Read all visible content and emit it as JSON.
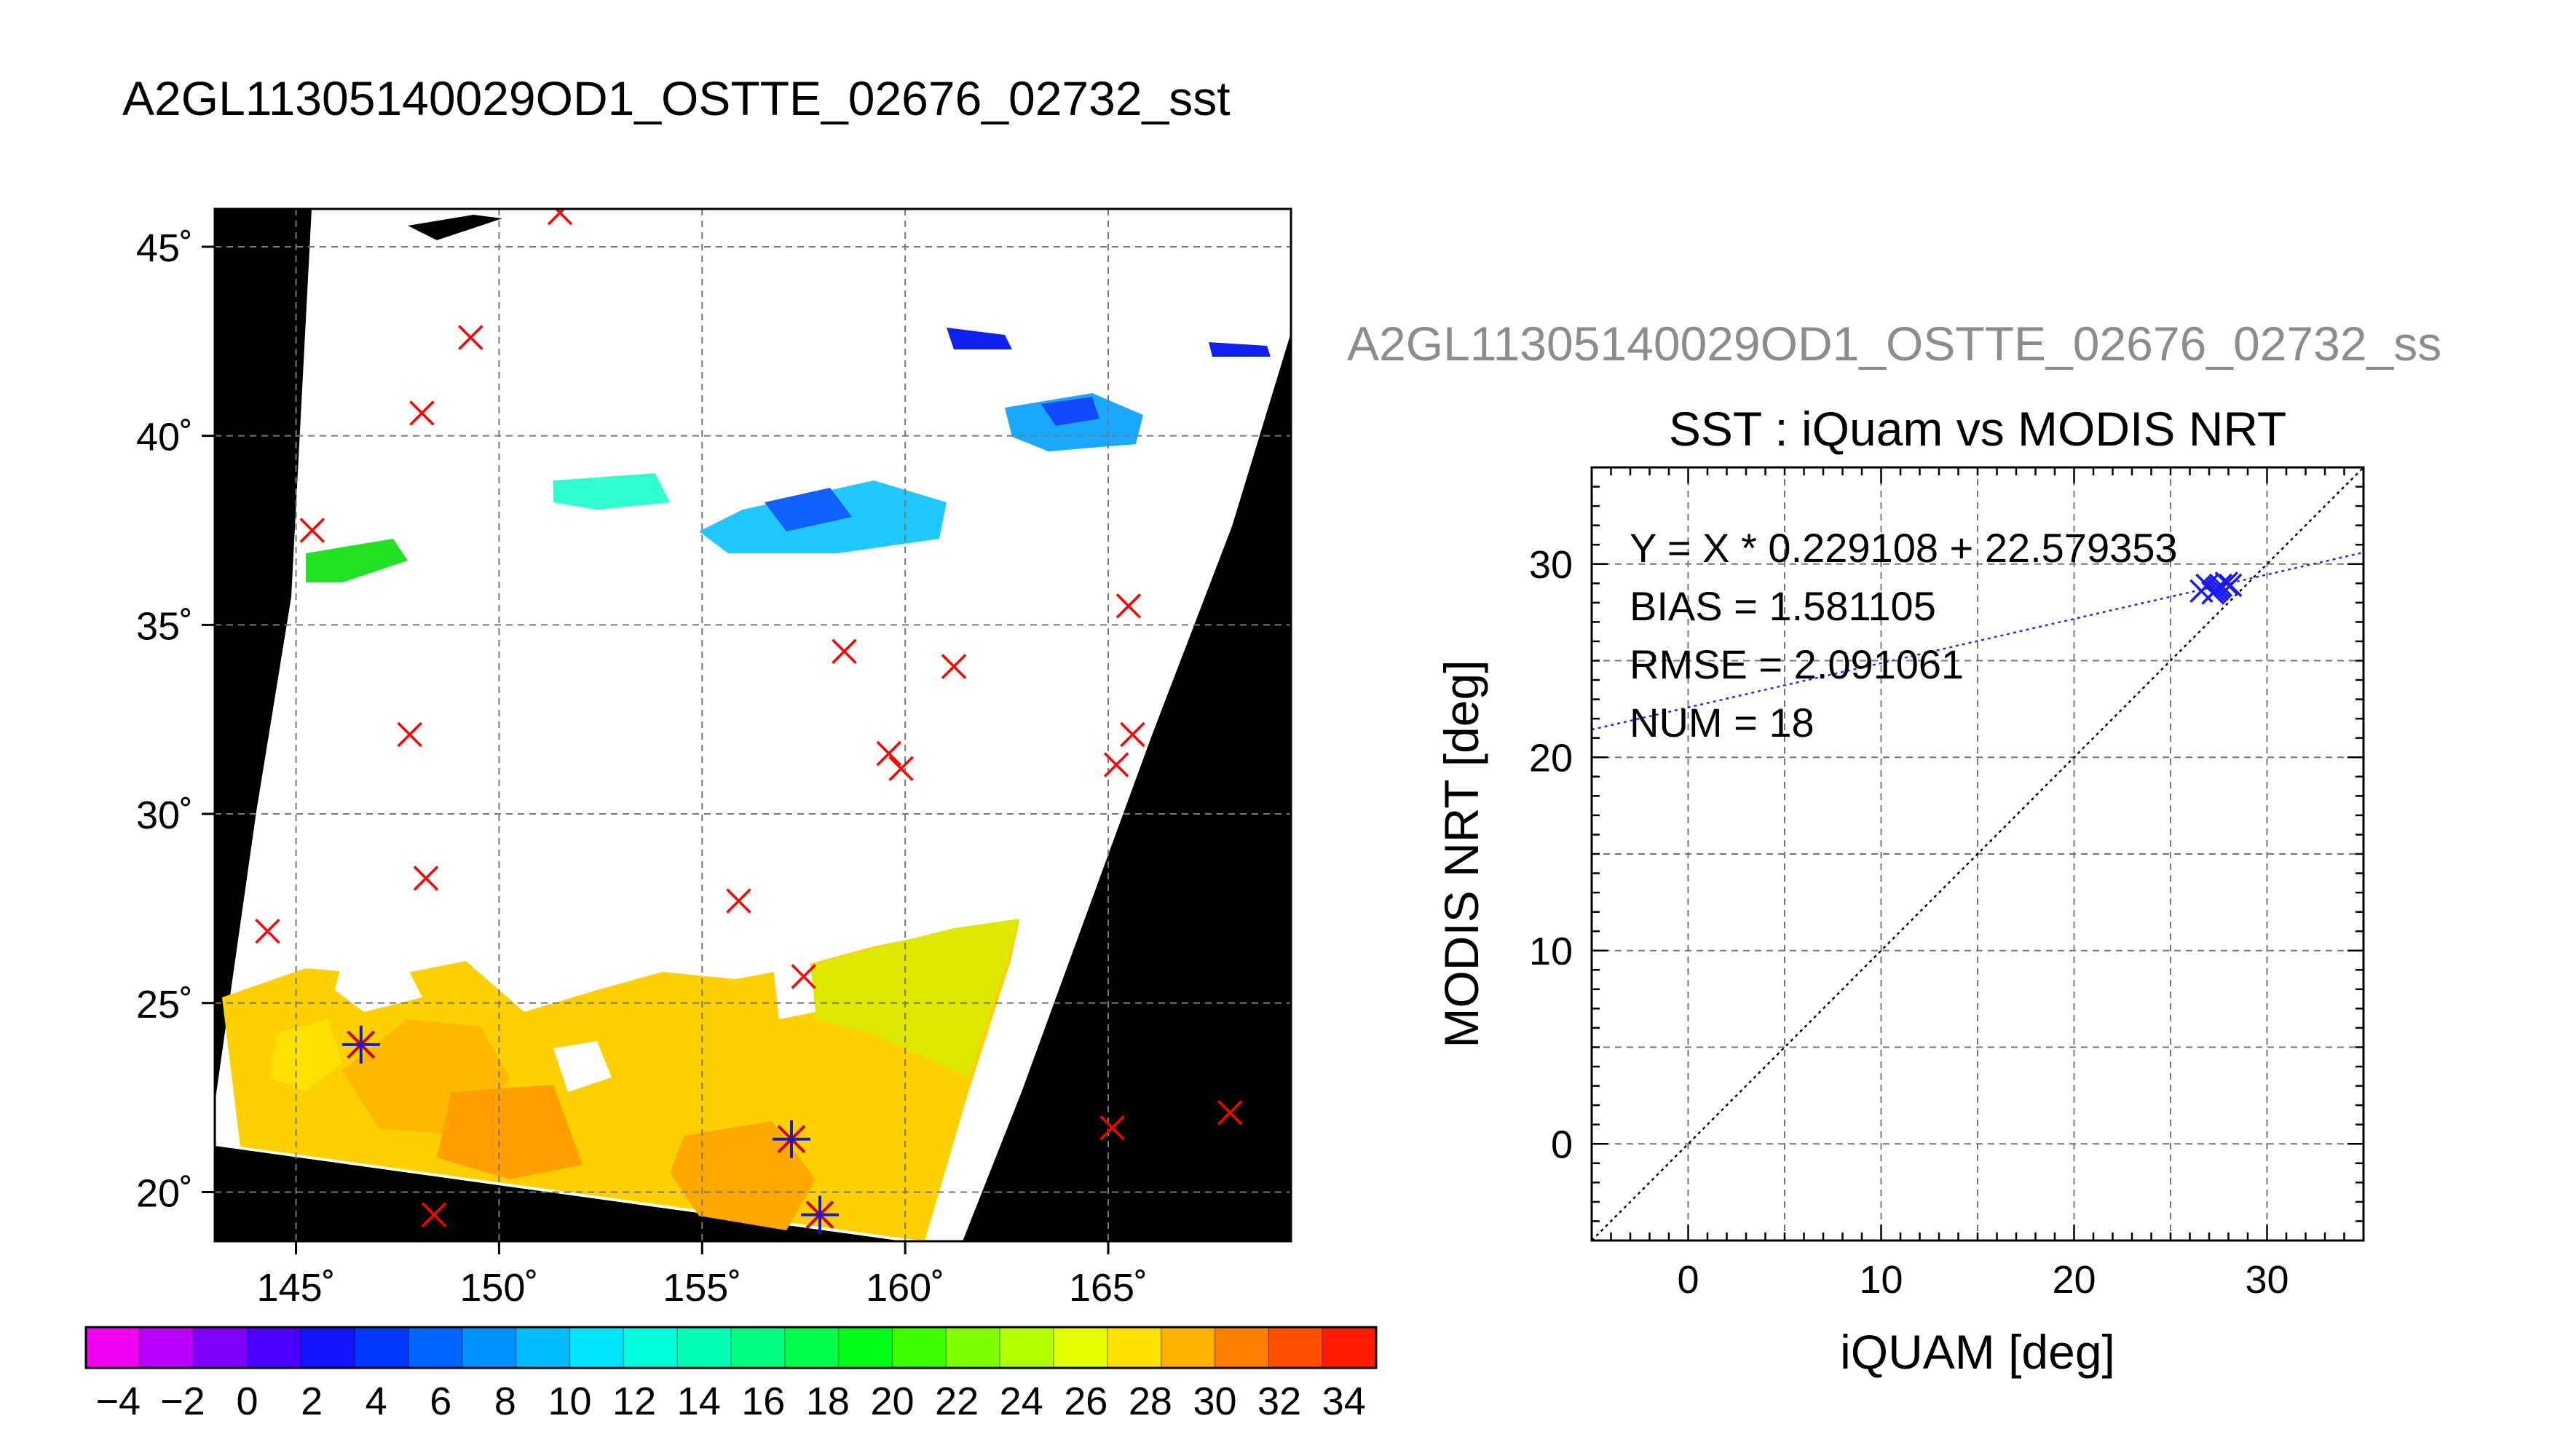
{
  "main_title": "A2GL11305140029OD1_OSTTE_02676_02732_sst",
  "map": {
    "lon_range": [
      143,
      169.5
    ],
    "lat_range": [
      18.7,
      46
    ],
    "lon_ticks": [
      145,
      150,
      155,
      160,
      165
    ],
    "lat_ticks": [
      20,
      25,
      30,
      35,
      40,
      45
    ],
    "lon_tick_labels": [
      "145˚",
      "150˚",
      "155˚",
      "160˚",
      "165˚"
    ],
    "lat_tick_labels": [
      "20˚",
      "25˚",
      "30˚",
      "35˚",
      "40˚",
      "45˚"
    ],
    "grid": true,
    "rejected_points": [
      [
        151.5,
        45.9
      ],
      [
        149.3,
        42.6
      ],
      [
        148.1,
        40.6
      ],
      [
        145.4,
        37.5
      ],
      [
        165.5,
        35.5
      ],
      [
        158.5,
        34.3
      ],
      [
        161.2,
        33.9
      ],
      [
        147.8,
        32.1
      ],
      [
        165.6,
        32.1
      ],
      [
        159.6,
        31.6
      ],
      [
        159.9,
        31.2
      ],
      [
        165.2,
        31.3
      ],
      [
        148.2,
        28.3
      ],
      [
        155.9,
        27.7
      ],
      [
        144.3,
        26.9
      ],
      [
        157.5,
        25.7
      ],
      [
        165.1,
        21.7
      ],
      [
        168.0,
        22.1
      ],
      [
        148.4,
        19.4
      ]
    ],
    "matched_points": [
      [
        146.6,
        23.9
      ],
      [
        157.2,
        21.4
      ],
      [
        157.9,
        19.4
      ]
    ],
    "marker_colors": {
      "rejected": "#ff0000",
      "matched_star": "#1a1acc",
      "matched_cross": "#cc0000"
    }
  },
  "colorbar": {
    "colors": [
      "#ee00ee",
      "#b800ff",
      "#8000ff",
      "#4b00ff",
      "#1414ff",
      "#0038ff",
      "#0064ff",
      "#0090ff",
      "#00bcff",
      "#00e4ff",
      "#00ffdc",
      "#00ffb4",
      "#00ff80",
      "#00ff4c",
      "#00ff18",
      "#40ff00",
      "#80ff00",
      "#b4ff00",
      "#e4ff00",
      "#ffe000",
      "#ffb000",
      "#ff8000",
      "#ff5000",
      "#ff1c00"
    ],
    "min": -5,
    "max": 35,
    "step": 2,
    "tick_values": [
      -4,
      -2,
      0,
      2,
      4,
      6,
      8,
      10,
      12,
      14,
      16,
      18,
      20,
      22,
      24,
      26,
      28,
      30,
      32,
      34
    ]
  },
  "scatter": {
    "file_title": "A2GL11305140029OD1_OSTTE_02676_02732_ss",
    "title": "SST : iQuam vs MODIS NRT",
    "xlabel": "iQUAM [deg]",
    "ylabel": "MODIS NRT [deg]",
    "xlim": [
      -5,
      35
    ],
    "ylim": [
      -5,
      35
    ],
    "x_ticks": [
      0,
      10,
      20,
      30
    ],
    "y_ticks": [
      0,
      10,
      20,
      30
    ],
    "stats": [
      "Y = X * 0.229108 + 22.579353",
      "BIAS = 1.581105",
      "RMSE = 2.091061",
      "NUM = 18"
    ],
    "fit": {
      "slope": 0.229108,
      "intercept": 22.579353
    },
    "points": [
      [
        26.6,
        28.6
      ],
      [
        26.9,
        28.9
      ],
      [
        27.2,
        28.5
      ],
      [
        27.4,
        28.7
      ],
      [
        27.6,
        28.9
      ],
      [
        27.9,
        29.0
      ],
      [
        28.1,
        28.9
      ],
      [
        27.3,
        28.6
      ],
      [
        27.5,
        28.8
      ]
    ],
    "point_color": "#1a1aee"
  },
  "chart_data": [
    {
      "type": "scatter",
      "title": "A2GL11305140029OD1_OSTTE_02676_02732_sst",
      "xlabel": "",
      "ylabel": "",
      "xlim": [
        143,
        169.5
      ],
      "ylim": [
        18.7,
        46
      ],
      "series": [
        {
          "name": "",
          "marker": "x",
          "points": [
            [
              151.5,
              45.9
            ],
            [
              149.3,
              42.6
            ],
            [
              148.1,
              40.6
            ],
            [
              145.4,
              37.5
            ],
            [
              165.5,
              35.5
            ],
            [
              158.5,
              34.3
            ],
            [
              161.2,
              33.9
            ],
            [
              147.8,
              32.1
            ],
            [
              165.6,
              32.1
            ],
            [
              159.6,
              31.6
            ],
            [
              159.9,
              31.2
            ],
            [
              165.2,
              31.3
            ],
            [
              148.2,
              28.3
            ],
            [
              155.9,
              27.7
            ],
            [
              144.3,
              26.9
            ],
            [
              157.5,
              25.7
            ],
            [
              165.1,
              21.7
            ],
            [
              168.0,
              22.1
            ],
            [
              148.4,
              19.4
            ]
          ]
        },
        {
          "name": "",
          "marker": "star",
          "points": [
            [
              146.6,
              23.9
            ],
            [
              157.2,
              21.4
            ],
            [
              157.9,
              19.4
            ]
          ]
        }
      ],
      "grid": true
    },
    {
      "type": "scatter",
      "title": "SST : iQuam vs MODIS NRT",
      "xlabel": "iQUAM [deg]",
      "ylabel": "MODIS NRT [deg]",
      "xlim": [
        -5,
        35
      ],
      "ylim": [
        -5,
        35
      ],
      "series": [
        {
          "name": "",
          "points": [
            [
              26.6,
              28.6
            ],
            [
              26.9,
              28.9
            ],
            [
              27.2,
              28.5
            ],
            [
              27.4,
              28.7
            ],
            [
              27.6,
              28.9
            ],
            [
              27.9,
              29.0
            ],
            [
              28.1,
              28.9
            ],
            [
              27.3,
              28.6
            ],
            [
              27.5,
              28.8
            ]
          ]
        }
      ],
      "grid": true
    }
  ]
}
